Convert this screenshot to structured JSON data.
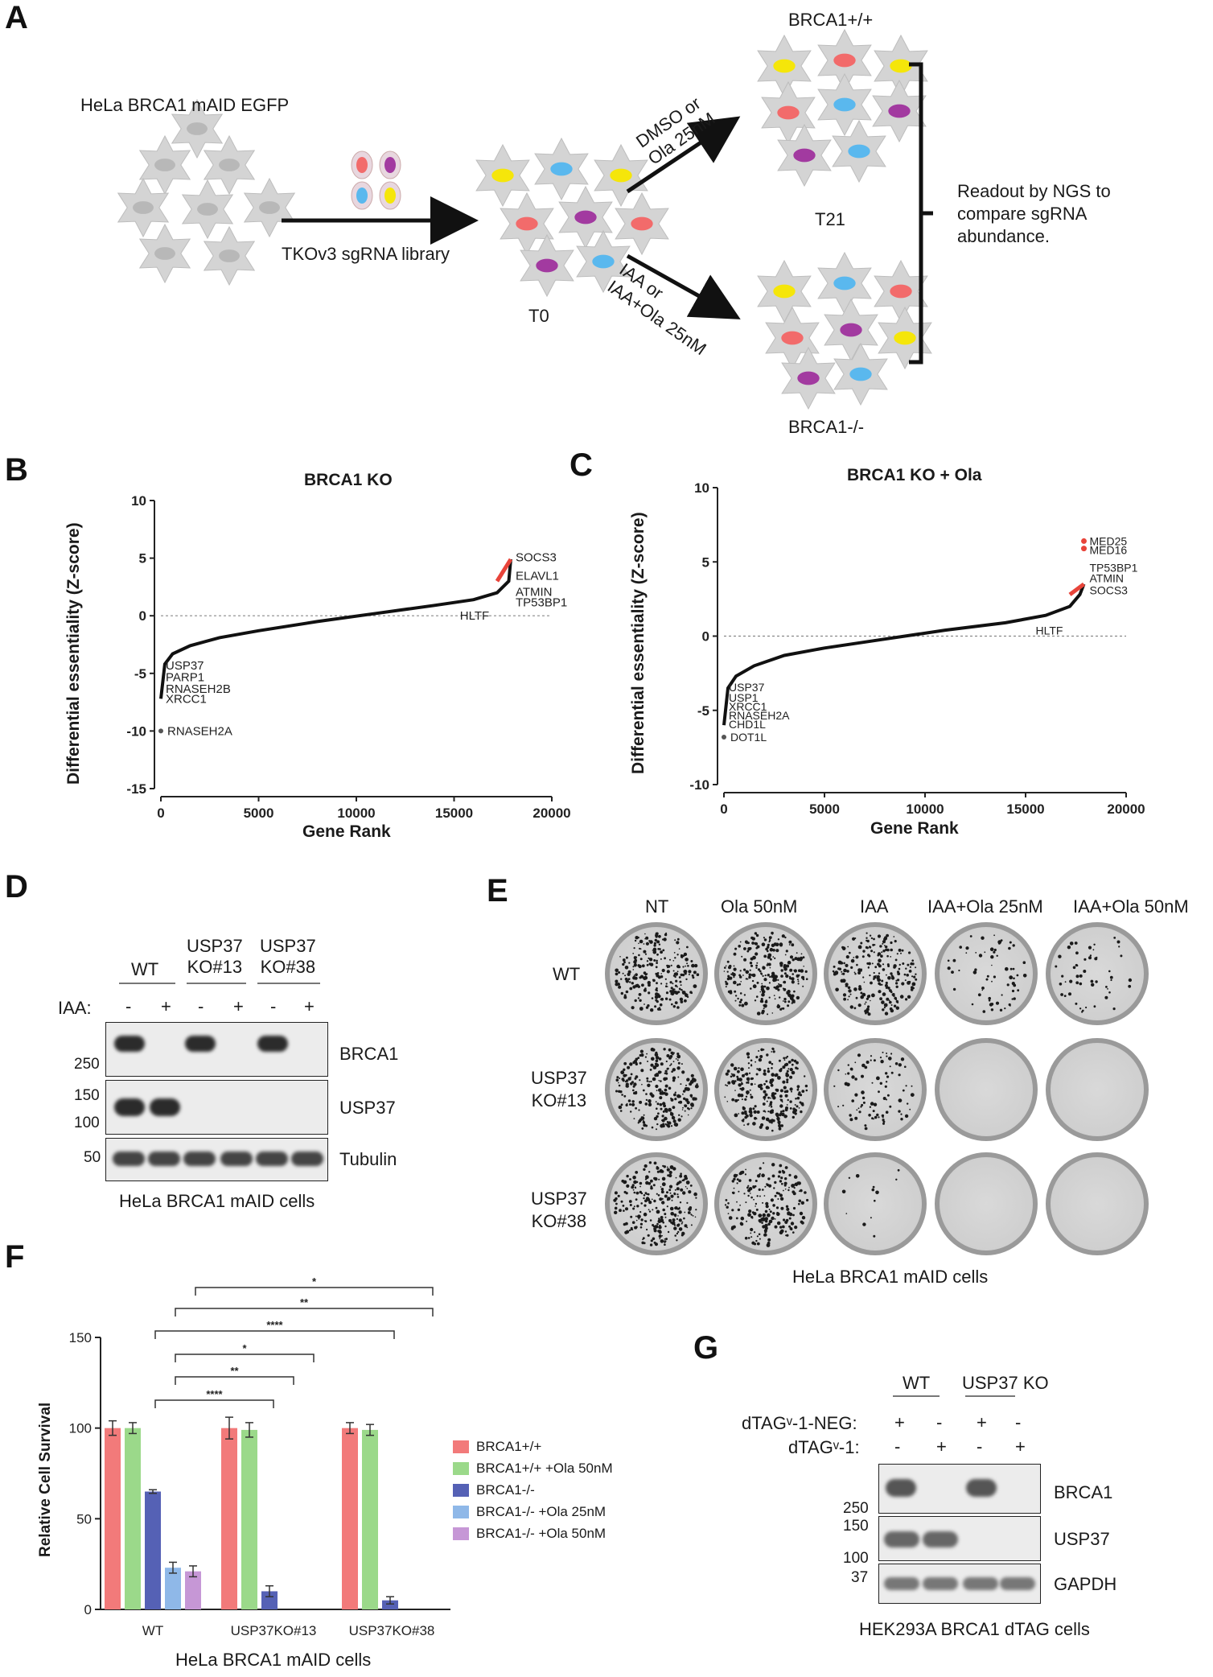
{
  "panels": {
    "A": "A",
    "B": "B",
    "C": "C",
    "D": "D",
    "E": "E",
    "F": "F",
    "G": "G"
  },
  "panelA": {
    "cell_line": "HeLa BRCA1 mAID EGFP",
    "library": "TKOv3 sgRNA library",
    "t0": "T0",
    "t21": "T21",
    "upper_arrow_line1": "DMSO or",
    "upper_arrow_line2": "Ola 25nM",
    "lower_arrow_line1": "IAA or",
    "lower_arrow_line2": "IAA+Ola 25nM",
    "top_genotype": "BRCA1+/+",
    "bottom_genotype": "BRCA1-/-",
    "readout_line1": "Readout by NGS to",
    "readout_line2": "compare sgRNA",
    "readout_line3": "abundance.",
    "colors": {
      "yellow": "#f5e60a",
      "blue": "#5ab8ee",
      "red": "#f26b6b",
      "purple": "#a23aa0",
      "grey_cell": "#cfcfcf"
    }
  },
  "chart_data": [
    {
      "id": "B",
      "type": "line",
      "title": "BRCA1 KO",
      "xlabel": "Gene Rank",
      "ylabel": "Differential essentiality (Z-score)",
      "xlim": [
        0,
        20000
      ],
      "ylim": [
        -15,
        10
      ],
      "xticks": [
        "0",
        "5000",
        "10000",
        "15000",
        "20000"
      ],
      "yticks": [
        "10",
        "5",
        "0",
        "-5",
        "-10",
        "-15"
      ],
      "curve": {
        "x": [
          0,
          200,
          600,
          1500,
          3000,
          5000,
          8000,
          11000,
          14000,
          16000,
          17200,
          17800,
          17900
        ],
        "y": [
          -7.2,
          -4.2,
          -3.3,
          -2.6,
          -1.9,
          -1.3,
          -0.5,
          0.2,
          0.9,
          1.4,
          2.0,
          3.0,
          4.9
        ]
      },
      "highlight_color": "#e8443a",
      "annotations_top": [
        "SOCS3",
        "ELAVL1",
        "ATMIN",
        "TP53BP1"
      ],
      "annotation_mid": "HLTF",
      "annotations_bottom": [
        "USP37",
        "PARP1",
        "RNASEH2B",
        "XRCC1"
      ],
      "outlier": {
        "label": "RNASEH2A",
        "x": 0,
        "y": -10
      }
    },
    {
      "id": "C",
      "type": "line",
      "title": "BRCA1 KO + Ola",
      "xlabel": "Gene Rank",
      "ylabel": "Differential essentiality (Z-score)",
      "xlim": [
        0,
        20000
      ],
      "ylim": [
        -10,
        10
      ],
      "xticks": [
        "0",
        "5000",
        "10000",
        "15000",
        "20000"
      ],
      "yticks": [
        "10",
        "5",
        "0",
        "-5",
        "-10"
      ],
      "curve": {
        "x": [
          0,
          200,
          600,
          1500,
          3000,
          5000,
          8000,
          11000,
          14000,
          16000,
          17200,
          17700,
          17900
        ],
        "y": [
          -6.0,
          -3.5,
          -2.7,
          -2.0,
          -1.3,
          -0.8,
          -0.2,
          0.4,
          0.9,
          1.4,
          2.0,
          2.8,
          3.5
        ]
      },
      "highlight_color": "#e8443a",
      "annotations_top": [
        "MED25",
        "MED16",
        "TP53BP1",
        "ATMIN",
        "SOCS3"
      ],
      "annotation_mid": "HLTF",
      "annotations_bottom": [
        "USP37",
        "USP1",
        "XRCC1",
        "RNASEH2A",
        "CHD1L"
      ],
      "outlier": {
        "label": "DOT1L",
        "x": 0,
        "y": -6.8
      }
    },
    {
      "id": "F",
      "type": "bar",
      "xlabel": "HeLa BRCA1 mAID cells",
      "ylabel": "Relative Cell Survival",
      "ylim": [
        0,
        150
      ],
      "yticks": [
        "0",
        "50",
        "100",
        "150"
      ],
      "categories": [
        "WT",
        "USP37KO#13",
        "USP37KO#38"
      ],
      "series": [
        {
          "name": "BRCA1+/+",
          "color": "#f27a7a",
          "values": [
            100,
            100,
            100
          ],
          "errors": [
            4,
            6,
            3
          ]
        },
        {
          "name": "BRCA1+/+ +Ola 50nM",
          "color": "#9bd98a",
          "values": [
            100,
            99,
            99
          ],
          "errors": [
            3,
            4,
            3
          ]
        },
        {
          "name": "BRCA1-/-",
          "color": "#5561b5",
          "values": [
            65,
            10,
            5
          ],
          "errors": [
            1,
            3,
            2
          ]
        },
        {
          "name": "BRCA1-/- +Ola 25nM",
          "color": "#8fb8e8",
          "values": [
            23,
            0,
            0
          ],
          "errors": [
            3,
            0,
            0
          ]
        },
        {
          "name": "BRCA1-/- +Ola 50nM",
          "color": "#c697d6",
          "values": [
            21,
            0,
            0
          ],
          "errors": [
            3,
            0,
            0
          ]
        }
      ],
      "significance": [
        "*",
        "**",
        "****",
        "*",
        "**",
        "****"
      ]
    }
  ],
  "panelD": {
    "groups": [
      "WT",
      "USP37\nKO#13",
      "USP37\nKO#38"
    ],
    "group_line1": [
      "WT",
      "USP37",
      "USP37"
    ],
    "group_line2": [
      "",
      "KO#13",
      "KO#38"
    ],
    "treatment_label": "IAA:",
    "treatment": [
      "-",
      "+",
      "-",
      "+",
      "-",
      "+"
    ],
    "markers": [
      "250",
      "150",
      "100",
      "50"
    ],
    "proteins": [
      "BRCA1",
      "USP37",
      "Tubulin"
    ],
    "caption": "HeLa BRCA1 mAID cells"
  },
  "panelE": {
    "columns": [
      "NT",
      "Ola 50nM",
      "IAA",
      "IAA+Ola 25nM",
      "IAA+Ola 50nM"
    ],
    "rows_line1": [
      "WT",
      "USP37",
      "USP37"
    ],
    "rows_line2": [
      "",
      "KO#13",
      "KO#38"
    ],
    "caption": "HeLa BRCA1 mAID cells"
  },
  "panelG": {
    "groups": [
      "WT",
      "USP37 KO"
    ],
    "treat1_label": "dTAGᵛ-1-NEG:",
    "treat2_label": "dTAGᵛ-1:",
    "treat1": [
      "+",
      "-",
      "+",
      "-"
    ],
    "treat2": [
      "-",
      "+",
      "-",
      "+"
    ],
    "markers": [
      "250",
      "150",
      "100",
      "37"
    ],
    "proteins": [
      "BRCA1",
      "USP37",
      "GAPDH"
    ],
    "caption": "HEK293A BRCA1 dTAG cells"
  }
}
